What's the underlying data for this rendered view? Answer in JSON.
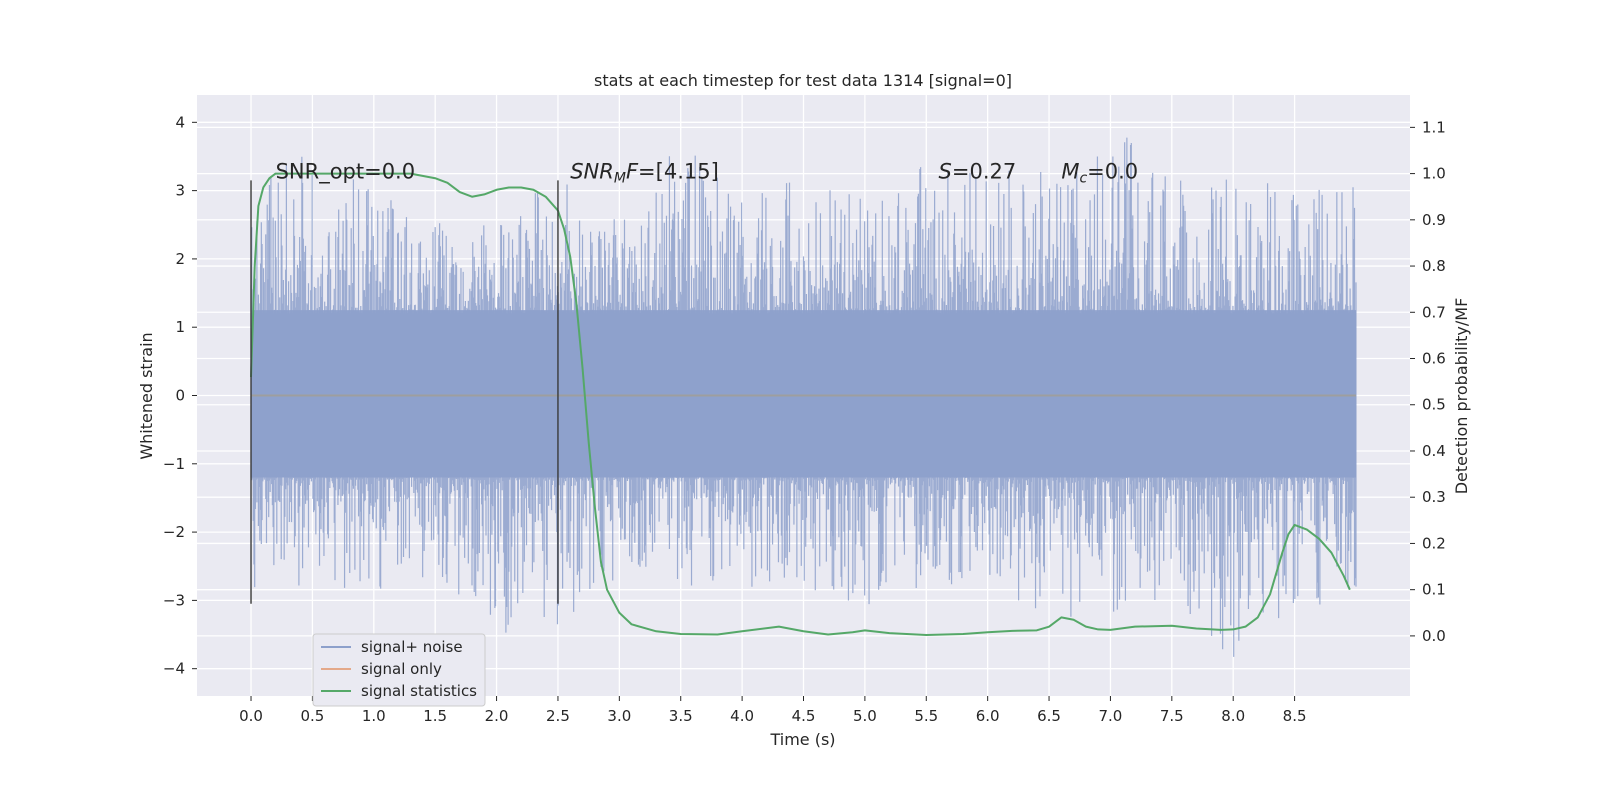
{
  "chart_data": {
    "type": "line",
    "title": "stats at each timestep for test data 1314 [signal=0]",
    "xlabel": "Time (s)",
    "ylabel": "Whitened strain",
    "y2label": "Detection probability/MF",
    "xlim": [
      -0.44,
      9.44
    ],
    "ylim": [
      -4.4,
      4.4
    ],
    "y2lim": [
      -0.13,
      1.17
    ],
    "x_ticks": [
      0.0,
      0.5,
      1.0,
      1.5,
      2.0,
      2.5,
      3.0,
      3.5,
      4.0,
      4.5,
      5.0,
      5.5,
      6.0,
      6.5,
      7.0,
      7.5,
      8.0,
      8.5
    ],
    "x_tick_labels": [
      "0.0",
      "0.5",
      "1.0",
      "1.5",
      "2.0",
      "2.5",
      "3.0",
      "3.5",
      "4.0",
      "4.5",
      "5.0",
      "5.5",
      "6.0",
      "6.5",
      "7.0",
      "7.5",
      "8.0",
      "8.5"
    ],
    "y_ticks": [
      -4,
      -3,
      -2,
      -1,
      0,
      1,
      2,
      3,
      4
    ],
    "y_tick_labels": [
      "−4",
      "−3",
      "−2",
      "−1",
      "0",
      "1",
      "2",
      "3",
      "4"
    ],
    "y2_ticks": [
      0.0,
      0.1,
      0.2,
      0.3,
      0.4,
      0.5,
      0.6,
      0.7,
      0.8,
      0.9,
      1.0,
      1.1
    ],
    "y2_tick_labels": [
      "0.0",
      "0.1",
      "0.2",
      "0.3",
      "0.4",
      "0.5",
      "0.6",
      "0.7",
      "0.8",
      "0.9",
      "1.0",
      "1.1"
    ],
    "grid": true,
    "legend_position": "lower-left",
    "noise_envelope": {
      "x": [
        0.0,
        0.5,
        1.0,
        1.5,
        2.0,
        2.5,
        3.0,
        3.5,
        4.0,
        4.5,
        5.0,
        5.5,
        6.0,
        6.5,
        7.0,
        7.5,
        8.0,
        8.5,
        9.0
      ],
      "upper": [
        3.1,
        3.6,
        3.0,
        2.6,
        2.5,
        3.3,
        2.6,
        3.8,
        2.9,
        3.3,
        2.9,
        3.4,
        3.3,
        3.4,
        4.0,
        3.2,
        3.3,
        3.1,
        3.2
      ],
      "lower": [
        -3.05,
        -2.8,
        -2.9,
        -2.7,
        -3.5,
        -3.4,
        -2.7,
        -2.9,
        -2.9,
        -2.8,
        -3.1,
        -2.9,
        -2.8,
        -3.3,
        -3.3,
        -2.9,
        -3.9,
        -3.3,
        -2.8
      ]
    },
    "series": [
      {
        "name": "signal+ noise",
        "color": "#8da0cb",
        "x": [
          0.0,
          9.0
        ],
        "y": [
          0.0,
          0.0
        ]
      },
      {
        "name": "signal only",
        "color": "#e4a98a",
        "x": [
          0.0,
          9.0
        ],
        "y": [
          0.0,
          0.0
        ]
      },
      {
        "name": "signal statistics",
        "color": "#55a868",
        "axis": "right",
        "x": [
          0.0,
          0.03,
          0.06,
          0.1,
          0.15,
          0.2,
          0.3,
          0.5,
          1.0,
          1.3,
          1.5,
          1.6,
          1.7,
          1.8,
          1.9,
          2.0,
          2.1,
          2.2,
          2.3,
          2.4,
          2.5,
          2.55,
          2.6,
          2.65,
          2.7,
          2.75,
          2.8,
          2.85,
          2.9,
          3.0,
          3.1,
          3.3,
          3.5,
          3.8,
          4.0,
          4.3,
          4.5,
          4.7,
          4.9,
          5.0,
          5.2,
          5.5,
          5.8,
          6.0,
          6.2,
          6.4,
          6.5,
          6.6,
          6.7,
          6.8,
          6.9,
          7.0,
          7.2,
          7.5,
          7.7,
          7.9,
          8.0,
          8.1,
          8.2,
          8.3,
          8.4,
          8.45,
          8.5,
          8.6,
          8.7,
          8.8,
          8.9,
          8.95
        ],
        "y": [
          0.56,
          0.8,
          0.93,
          0.97,
          0.99,
          1.0,
          1.0,
          1.0,
          1.0,
          1.0,
          0.99,
          0.98,
          0.96,
          0.95,
          0.955,
          0.965,
          0.97,
          0.97,
          0.965,
          0.95,
          0.92,
          0.88,
          0.82,
          0.72,
          0.58,
          0.42,
          0.28,
          0.16,
          0.1,
          0.05,
          0.025,
          0.01,
          0.004,
          0.003,
          0.01,
          0.02,
          0.01,
          0.003,
          0.008,
          0.012,
          0.006,
          0.002,
          0.004,
          0.008,
          0.011,
          0.012,
          0.02,
          0.04,
          0.035,
          0.02,
          0.014,
          0.013,
          0.02,
          0.022,
          0.016,
          0.013,
          0.014,
          0.02,
          0.04,
          0.09,
          0.18,
          0.22,
          0.24,
          0.23,
          0.21,
          0.18,
          0.13,
          0.1
        ]
      }
    ],
    "vertical_markers": [
      {
        "x": 0.0,
        "y_from": -3.05,
        "y_to": 3.15
      },
      {
        "x": 2.5,
        "y_from": -3.05,
        "y_to": 3.15
      }
    ],
    "annotations": [
      {
        "text": "SNR_opt=0.0",
        "x": 0.2,
        "y": 3.18
      },
      {
        "text": "F=[4.15]",
        "x": 2.6,
        "y": 3.18,
        "prefix_main": "SNR",
        "prefix_sub": "M"
      },
      {
        "text": "=0.27",
        "x": 5.6,
        "y": 3.18,
        "prefix_main": "S"
      },
      {
        "text": "=0.0",
        "x": 6.6,
        "y": 3.18,
        "prefix_main": "M",
        "prefix_sub": "c"
      }
    ]
  }
}
